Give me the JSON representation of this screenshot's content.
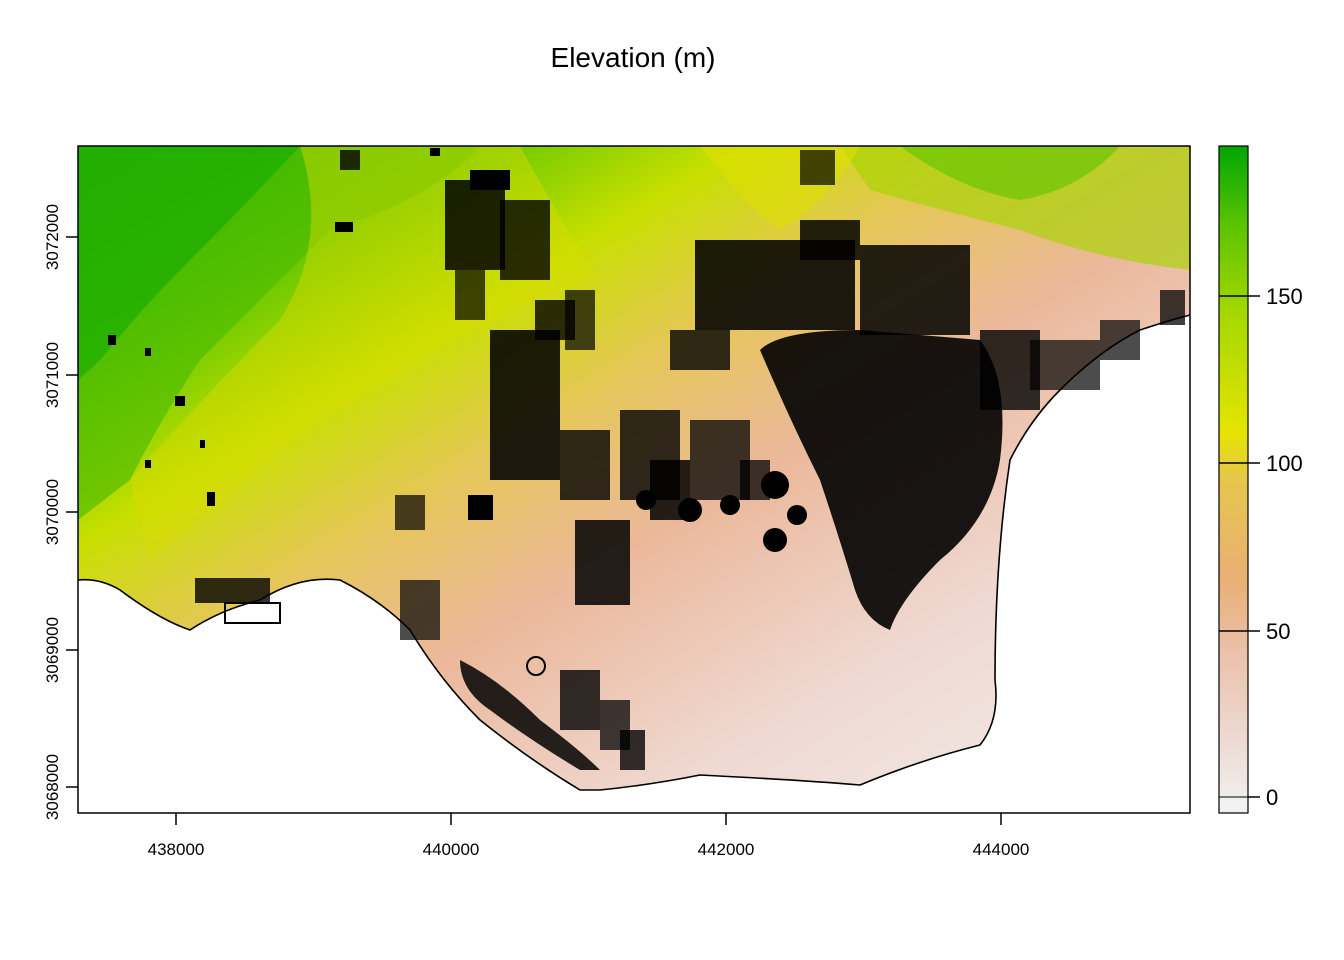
{
  "title": "Elevation (m)",
  "map": {
    "x_ticks": [
      "438000",
      "440000",
      "442000",
      "444000"
    ],
    "y_ticks": [
      "3068000",
      "3069000",
      "3070000",
      "3071000",
      "3072000"
    ],
    "legend": {
      "labels": [
        "0",
        "50",
        "100",
        "150"
      ],
      "colors": {
        "low": "#f2f2f2",
        "pink": "#ecc6b8",
        "tan": "#e9b074",
        "yellow": "#e6e400",
        "lime": "#7ed100",
        "green": "#00a600"
      }
    }
  }
}
